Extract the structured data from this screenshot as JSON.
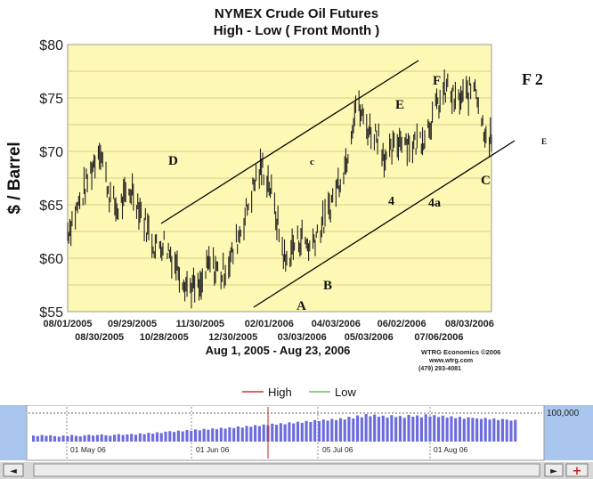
{
  "chart_data": {
    "type": "line",
    "title": "NYMEX Crude Oil Futures",
    "subtitle": "High - Low ( Front Month )",
    "ylabel": "$ / Barrel",
    "xlabel": "Aug 1, 2005 - Aug 23, 2006",
    "ylim": [
      55,
      80
    ],
    "yticks": [
      "$55",
      "$60",
      "$65",
      "$70",
      "$75",
      "$80"
    ],
    "ytick_values": [
      55,
      60,
      65,
      70,
      75,
      80
    ],
    "xticks_top": [
      "08/01/2005",
      "09/29/2005",
      "11/30/2005",
      "02/01/2006",
      "04/03/2006",
      "06/02/2006",
      "08/03/2006"
    ],
    "xticks_bottom": [
      "08/30/2005",
      "10/28/2005",
      "12/30/2005",
      "03/03/2006",
      "05/03/2006",
      "07/06/2006"
    ],
    "grid": true,
    "legend_position": "bottom-center",
    "series": [
      {
        "name": "High",
        "color": "#cc3333"
      },
      {
        "name": "Low",
        "color": "#66bb66"
      }
    ],
    "range_points": [
      [
        "2005-08-01",
        62.5
      ],
      [
        "2005-08-15",
        66.0
      ],
      [
        "2005-08-30",
        70.5
      ],
      [
        "2005-09-08",
        66.0
      ],
      [
        "2005-09-15",
        64.5
      ],
      [
        "2005-09-29",
        66.5
      ],
      [
        "2005-10-10",
        63.5
      ],
      [
        "2005-10-20",
        61.0
      ],
      [
        "2005-10-28",
        61.5
      ],
      [
        "2005-11-08",
        59.5
      ],
      [
        "2005-11-18",
        57.5
      ],
      [
        "2005-11-30",
        57.0
      ],
      [
        "2005-12-08",
        59.5
      ],
      [
        "2005-12-20",
        58.5
      ],
      [
        "2005-12-30",
        60.5
      ],
      [
        "2006-01-10",
        64.0
      ],
      [
        "2006-01-20",
        67.5
      ],
      [
        "2006-01-26",
        68.5
      ],
      [
        "2006-02-01",
        67.0
      ],
      [
        "2006-02-10",
        62.5
      ],
      [
        "2006-02-16",
        59.5
      ],
      [
        "2006-02-22",
        61.0
      ],
      [
        "2006-03-03",
        62.0
      ],
      [
        "2006-03-10",
        61.0
      ],
      [
        "2006-03-17",
        62.5
      ],
      [
        "2006-03-24",
        63.5
      ],
      [
        "2006-04-03",
        66.5
      ],
      [
        "2006-04-12",
        69.0
      ],
      [
        "2006-04-21",
        74.5
      ],
      [
        "2006-05-03",
        72.0
      ],
      [
        "2006-05-12",
        71.5
      ],
      [
        "2006-05-19",
        69.0
      ],
      [
        "2006-06-02",
        71.5
      ],
      [
        "2006-06-12",
        70.5
      ],
      [
        "2006-06-22",
        71.5
      ],
      [
        "2006-07-06",
        74.5
      ],
      [
        "2006-07-14",
        76.0
      ],
      [
        "2006-07-21",
        74.5
      ],
      [
        "2006-08-03",
        75.5
      ],
      [
        "2006-08-08",
        76.5
      ],
      [
        "2006-08-15",
        72.5
      ],
      [
        "2006-08-23",
        71.0
      ]
    ],
    "annotations": [
      {
        "text": "D"
      },
      {
        "text": "c"
      },
      {
        "text": "E"
      },
      {
        "text": "F"
      },
      {
        "text": "F 2"
      },
      {
        "text": "4"
      },
      {
        "text": "4a"
      },
      {
        "text": "A"
      },
      {
        "text": "B"
      },
      {
        "text": "C"
      },
      {
        "text": "E"
      }
    ],
    "source": [
      "WTRG Economics  ©2006",
      "www.wtrg.com",
      "(479) 293-4081"
    ]
  },
  "navigator": {
    "labels": [
      "01 May 06",
      "01 Jun 06",
      "05 Jul 06",
      "01 Aug 06"
    ],
    "max_label": "100,000",
    "volume": [
      0.22,
      0.2,
      0.24,
      0.21,
      0.23,
      0.2,
      0.18,
      0.22,
      0.2,
      0.24,
      0.21,
      0.19,
      0.23,
      0.25,
      0.22,
      0.24,
      0.26,
      0.23,
      0.21,
      0.25,
      0.27,
      0.24,
      0.26,
      0.28,
      0.25,
      0.3,
      0.27,
      0.32,
      0.29,
      0.34,
      0.31,
      0.36,
      0.38,
      0.35,
      0.4,
      0.37,
      0.42,
      0.39,
      0.44,
      0.41,
      0.46,
      0.43,
      0.48,
      0.45,
      0.5,
      0.47,
      0.52,
      0.49,
      0.55,
      0.51,
      0.57,
      0.54,
      0.6,
      0.56,
      0.62,
      0.59,
      0.65,
      0.61,
      0.67,
      0.63,
      0.7,
      0.66,
      0.72,
      0.68,
      0.75,
      0.71,
      0.78,
      0.74,
      0.8,
      0.76,
      0.82,
      0.78,
      0.85,
      0.8,
      0.9,
      0.84,
      0.95,
      0.88,
      1.0,
      0.92,
      0.98,
      0.9,
      0.94,
      0.87,
      0.96,
      0.89,
      0.93,
      0.86,
      0.97,
      0.9,
      0.95,
      0.88,
      0.99,
      0.91,
      0.96,
      0.89,
      0.94,
      0.87,
      0.92,
      0.85,
      0.9,
      0.83,
      0.88,
      0.86,
      0.84,
      0.82,
      0.86,
      0.8,
      0.84,
      0.78,
      0.82,
      0.8,
      0.76,
      0.79
    ]
  },
  "colors": {
    "plot_bg": "#fdf8b4",
    "bar": "#222222",
    "trend": "#000000",
    "nav_side": "#a9c6ee",
    "nav_vol": "#6b6bdd"
  }
}
